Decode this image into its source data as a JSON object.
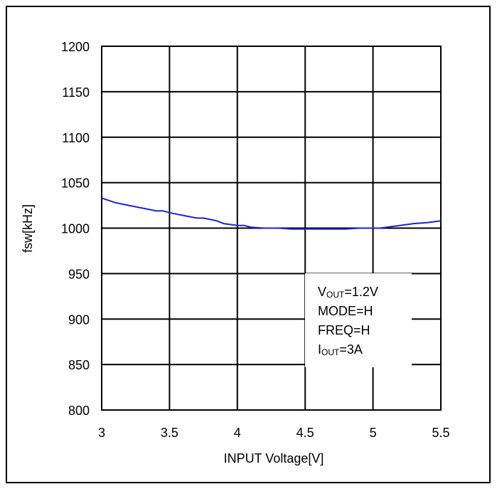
{
  "chart_data": {
    "type": "line",
    "title": "",
    "xlabel": "INPUT Voltage[V]",
    "ylabel": "fsw[kHz]",
    "xlim": [
      3,
      5.5
    ],
    "ylim": [
      800,
      1200
    ],
    "xticks": [
      "3",
      "3.5",
      "4",
      "4.5",
      "5",
      "5.5"
    ],
    "yticks": [
      "800",
      "850",
      "900",
      "950",
      "1000",
      "1050",
      "1100",
      "1150",
      "1200"
    ],
    "grid": true,
    "series": [
      {
        "color": "#2222cc",
        "x": [
          3.0,
          3.1,
          3.2,
          3.3,
          3.4,
          3.45,
          3.5,
          3.6,
          3.7,
          3.75,
          3.85,
          3.9,
          4.0,
          4.05,
          4.1,
          4.2,
          4.3,
          4.4,
          4.5,
          4.6,
          4.7,
          4.8,
          4.9,
          5.0,
          5.05,
          5.1,
          5.2,
          5.3,
          5.4,
          5.5
        ],
        "y": [
          1033,
          1028,
          1025,
          1022,
          1019,
          1019,
          1017,
          1014,
          1011,
          1011,
          1008,
          1005,
          1003,
          1003,
          1001,
          1000,
          1000,
          999,
          999,
          999,
          999,
          999,
          1000,
          1000,
          1000,
          1001,
          1003,
          1005,
          1006,
          1008
        ]
      }
    ],
    "annotation": {
      "lines": [
        {
          "main": "V",
          "sub": "OUT",
          "rest": "=1.2V"
        },
        {
          "main": "MODE=H",
          "sub": "",
          "rest": ""
        },
        {
          "main": "FREQ=H",
          "sub": "",
          "rest": ""
        },
        {
          "main": "I",
          "sub": "OUT",
          "rest": "=3A"
        }
      ]
    }
  }
}
